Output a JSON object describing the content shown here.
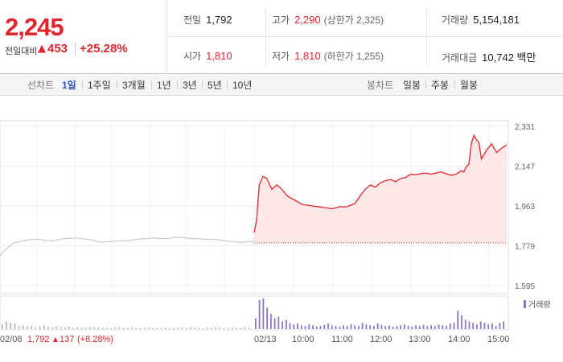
{
  "quote": {
    "price": "2,245",
    "change_label": "전일대비",
    "change_arrow": "▲",
    "change_value": "453",
    "change_pct": "+25.28%",
    "colors": {
      "up": "#e0262c",
      "up_fill": "#fde7e7",
      "volume": "#8a74c4",
      "prev_line": "#c0c0c0"
    }
  },
  "stats": {
    "prev_close_label": "전일",
    "prev_close": "1,792",
    "open_label": "시가",
    "open": "1,810",
    "high_label": "고가",
    "high": "2,290",
    "upper_limit": "(상한가 2,325)",
    "low_label": "저가",
    "low": "1,810",
    "lower_limit": "(하한가 1,255)",
    "volume_label": "거래량",
    "volume": "5,154,181",
    "amount_label": "거래대금",
    "amount": "10,742 백만"
  },
  "toolbar": {
    "line_label": "선차트",
    "line_periods": [
      "1일",
      "1주일",
      "3개월",
      "1년",
      "3년",
      "5년",
      "10년"
    ],
    "active_period": "1일",
    "candle_label": "봉차트",
    "candle_periods": [
      "일봉",
      "주봉",
      "월봉"
    ]
  },
  "chart_data": {
    "type": "line",
    "y_ticks": [
      "2,331",
      "2,147",
      "1,963",
      "1,779",
      "1,595"
    ],
    "ylim": [
      1595,
      2331
    ],
    "prev_close_ref": 1792,
    "x_labels": [
      "02/08",
      "02/13",
      "10:00",
      "11:00",
      "12:00",
      "13:00",
      "14:00",
      "15:00"
    ],
    "prev_day_summary": {
      "close": "1,792",
      "arrow": "▲",
      "change": "137",
      "pct": "(+8.28%)"
    },
    "volume_legend": "거래량",
    "prev_day_series": {
      "x": [
        0,
        0.02,
        0.05,
        0.1,
        0.15,
        0.2,
        0.25,
        0.3,
        0.35,
        0.4,
        0.45,
        0.5,
        0.55,
        0.6,
        0.65,
        0.7,
        0.75,
        0.8,
        0.85,
        0.9,
        0.95,
        1.0
      ],
      "y": [
        1730,
        1760,
        1790,
        1805,
        1810,
        1800,
        1812,
        1815,
        1808,
        1795,
        1800,
        1803,
        1810,
        1815,
        1812,
        1818,
        1813,
        1810,
        1808,
        1800,
        1795,
        1800
      ]
    },
    "today_series": {
      "x": [
        0,
        0.01,
        0.02,
        0.035,
        0.05,
        0.07,
        0.09,
        0.11,
        0.13,
        0.16,
        0.19,
        0.22,
        0.25,
        0.28,
        0.31,
        0.34,
        0.36,
        0.38,
        0.4,
        0.42,
        0.44,
        0.46,
        0.48,
        0.5,
        0.52,
        0.54,
        0.56,
        0.58,
        0.6,
        0.62,
        0.64,
        0.66,
        0.68,
        0.7,
        0.72,
        0.74,
        0.76,
        0.78,
        0.8,
        0.82,
        0.83,
        0.84,
        0.85,
        0.86,
        0.87,
        0.88,
        0.89,
        0.9,
        0.92,
        0.94,
        0.96,
        0.98,
        1.0
      ],
      "y": [
        1840,
        1900,
        2060,
        2100,
        2090,
        2040,
        2060,
        2040,
        2010,
        1990,
        1970,
        1965,
        1960,
        1955,
        1950,
        1960,
        1958,
        1965,
        1975,
        2010,
        2040,
        2060,
        2050,
        2070,
        2080,
        2085,
        2075,
        2090,
        2095,
        2110,
        2108,
        2112,
        2115,
        2110,
        2115,
        2120,
        2112,
        2105,
        2110,
        2125,
        2120,
        2145,
        2155,
        2250,
        2290,
        2270,
        2255,
        2180,
        2220,
        2250,
        2210,
        2230,
        2245
      ]
    },
    "volume_prev": [
      0.15,
      0.25,
      0.2,
      0.18,
      0.1,
      0.12,
      0.08,
      0.1,
      0.06,
      0.08,
      0.12,
      0.07,
      0.05,
      0.09,
      0.06,
      0.05,
      0.08,
      0.04,
      0.06,
      0.05,
      0.04,
      0.07,
      0.05,
      0.06,
      0.04,
      0.05,
      0.03,
      0.05,
      0.06,
      0.04,
      0.03,
      0.05,
      0.04,
      0.03,
      0.04,
      0.05,
      0.03,
      0.04,
      0.03,
      0.05,
      0.04,
      0.03,
      0.04,
      0.05,
      0.04,
      0.06,
      0.05,
      0.04,
      0.03,
      0.05,
      0.04,
      0.06,
      0.05,
      0.03,
      0.04,
      0.05,
      0.04,
      0.03,
      0.06,
      0.05
    ],
    "volume_today": [
      0.35,
      0.95,
      1.0,
      0.7,
      0.5,
      0.35,
      0.4,
      0.25,
      0.3,
      0.2,
      0.15,
      0.18,
      0.12,
      0.1,
      0.15,
      0.12,
      0.08,
      0.1,
      0.14,
      0.18,
      0.12,
      0.1,
      0.08,
      0.12,
      0.1,
      0.15,
      0.12,
      0.1,
      0.2,
      0.15,
      0.12,
      0.1,
      0.18,
      0.14,
      0.1,
      0.12,
      0.08,
      0.1,
      0.12,
      0.15,
      0.1,
      0.08,
      0.12,
      0.1,
      0.14,
      0.1,
      0.12,
      0.1,
      0.15,
      0.12,
      0.1,
      0.18,
      0.2,
      0.6,
      0.45,
      0.3,
      0.25,
      0.2,
      0.15,
      0.25,
      0.2,
      0.15,
      0.18,
      0.1,
      0.2,
      0.25
    ]
  }
}
